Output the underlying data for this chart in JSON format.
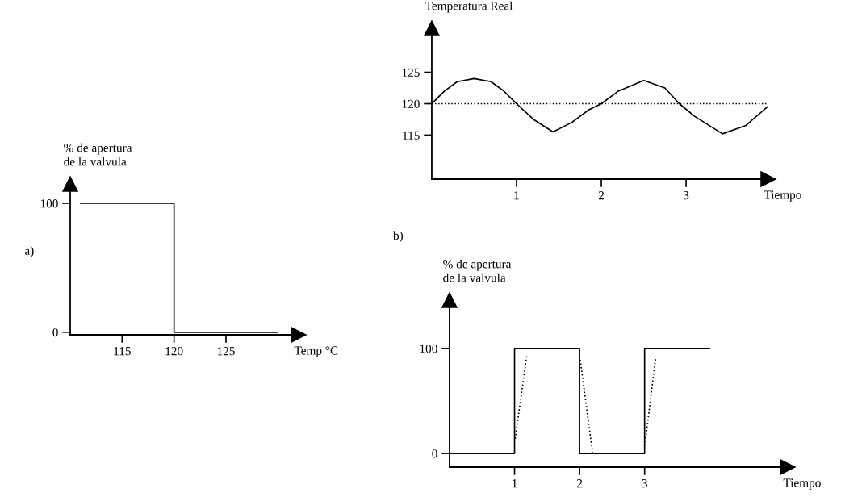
{
  "chart_data": [
    {
      "type": "step",
      "xlabel": "Temp °C",
      "ylabel": "% de apertura\nde la valvula",
      "annotations": [
        "a)"
      ],
      "series": [
        {
          "color": "#000000",
          "x": [
            111,
            120,
            130
          ],
          "values": [
            100,
            0,
            0
          ]
        }
      ],
      "xlim": [
        110,
        132
      ],
      "ylim": [
        -2,
        115
      ],
      "xticks": [
        115,
        120,
        125
      ],
      "yticks": [
        0,
        100
      ],
      "grid": false
    },
    {
      "type": "line",
      "xlabel": "Tiempo",
      "ylabel": "Temperatura Real",
      "series": [
        {
          "color": "#000000",
          "x": [
            0,
            0.15,
            0.3,
            0.5,
            0.7,
            0.85,
            1.0,
            1.2,
            1.43,
            1.65,
            1.85,
            2.0,
            2.2,
            2.5,
            2.75,
            2.92,
            3.1,
            3.43,
            3.7,
            3.96
          ],
          "values": [
            120,
            122,
            123.5,
            124,
            123.5,
            122,
            120,
            117.5,
            115.5,
            117,
            119,
            120,
            122,
            123.7,
            122.5,
            120,
            118,
            115.2,
            116.5,
            119.5
          ]
        }
      ],
      "ref_lines": [
        {
          "axis": "y",
          "value": 120,
          "color": "#000000",
          "line_style": "dotted"
        }
      ],
      "xlim": [
        0,
        3.97
      ],
      "ylim": [
        108,
        132
      ],
      "xticks": [
        1,
        2,
        3
      ],
      "yticks": [
        115,
        120,
        125
      ],
      "grid": false
    },
    {
      "type": "step",
      "xlabel": "Tiempo",
      "ylabel": "% de apertura\nde la valvula",
      "annotations": [
        "b)"
      ],
      "series": [
        {
          "color": "#000000",
          "x": [
            0,
            1,
            2,
            3,
            4
          ],
          "values": [
            0,
            100,
            0,
            100,
            100
          ]
        },
        {
          "type": "line",
          "line_style": "dotted",
          "color": "#000000",
          "x": [
            1.01,
            1.19
          ],
          "values": [
            14,
            94
          ]
        },
        {
          "type": "line",
          "line_style": "dotted",
          "color": "#000000",
          "x": [
            2.01,
            2.2
          ],
          "values": [
            89,
            1
          ]
        },
        {
          "type": "line",
          "line_style": "dotted",
          "color": "#000000",
          "x": [
            3.01,
            3.17
          ],
          "values": [
            11,
            91
          ]
        }
      ],
      "xlim": [
        0,
        5.2
      ],
      "ylim": [
        -13,
        146
      ],
      "xticks": [
        1,
        2,
        3
      ],
      "yticks": [
        0,
        100
      ],
      "grid": false
    }
  ]
}
